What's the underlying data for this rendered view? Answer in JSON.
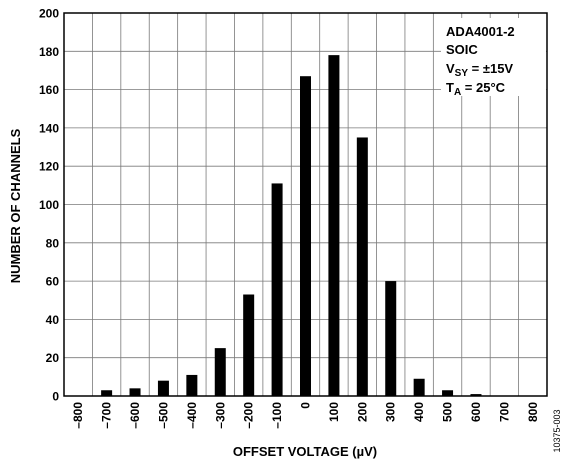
{
  "chart_data": {
    "type": "bar",
    "categories": [
      "-800",
      "-700",
      "-600",
      "-500",
      "-400",
      "-300",
      "-200",
      "-100",
      "0",
      "100",
      "200",
      "300",
      "400",
      "500",
      "600",
      "700",
      "800"
    ],
    "values": [
      0,
      3,
      4,
      8,
      11,
      25,
      53,
      111,
      167,
      178,
      135,
      60,
      9,
      3,
      1,
      0,
      0
    ],
    "category_labels": [
      "–800",
      "–700",
      "–600",
      "–500",
      "–400",
      "–300",
      "–200",
      "–100",
      "0",
      "100",
      "200",
      "300",
      "400",
      "500",
      "600",
      "700",
      "800"
    ],
    "ylim": [
      0,
      200
    ],
    "yticks": [
      "0",
      "20",
      "40",
      "60",
      "80",
      "100",
      "120",
      "140",
      "160",
      "180",
      "200"
    ],
    "xlabel": "OFFSET VOLTAGE (µV)",
    "ylabel": "NUMBER OF CHANNELS",
    "grid": true,
    "bar_color": "#000000",
    "annotation": {
      "line1": "ADA4001-2",
      "line2": "SOIC",
      "vsy_main": "V",
      "vsy_sub": "SY",
      "vsy_rest": " = ±15V",
      "ta_main": "T",
      "ta_sub": "A",
      "ta_rest": " = 25°C"
    },
    "figure_id": "10375-003"
  }
}
